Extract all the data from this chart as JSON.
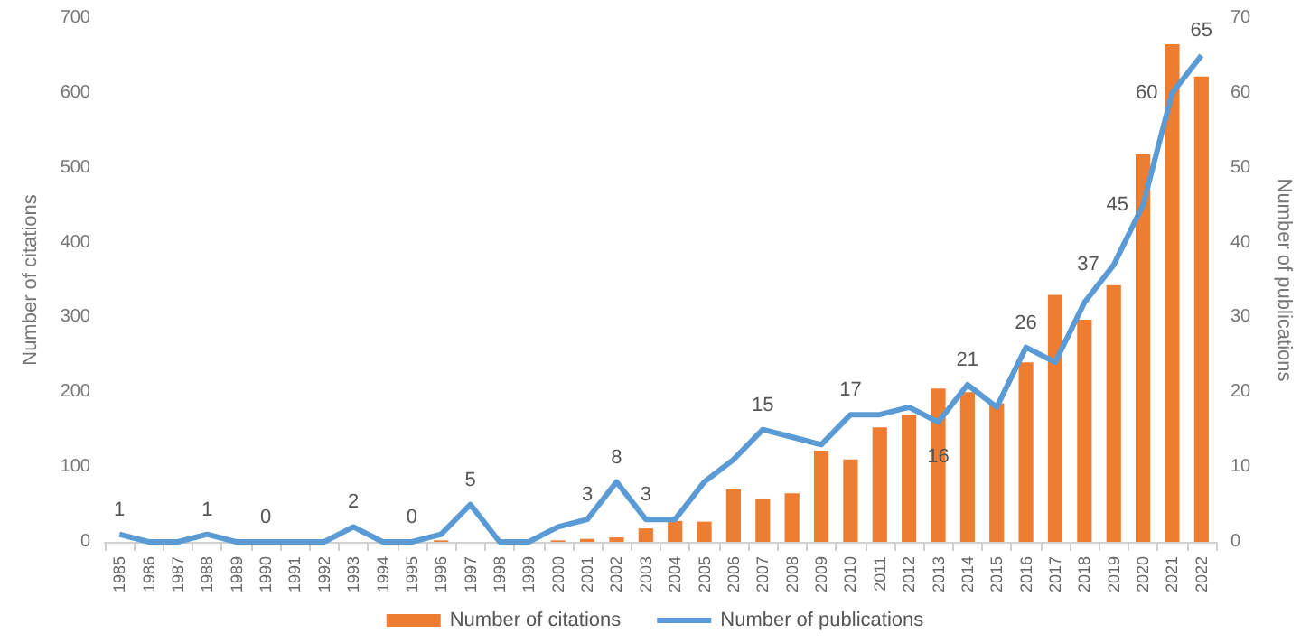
{
  "chart_data": {
    "type": "bar",
    "xlabel": null,
    "ylabel": "Number of citations",
    "y2label": "Number of publications",
    "categories": [
      "1985",
      "1986",
      "1987",
      "1988",
      "1989",
      "1990",
      "1991",
      "1992",
      "1993",
      "1994",
      "1995",
      "1996",
      "1997",
      "1998",
      "1999",
      "2000",
      "2001",
      "2002",
      "2003",
      "2004",
      "2005",
      "2006",
      "2007",
      "2008",
      "2009",
      "2010",
      "2011",
      "2012",
      "2013",
      "2014",
      "2015",
      "2016",
      "2017",
      "2018",
      "2019",
      "2020",
      "2021",
      "2022"
    ],
    "series": [
      {
        "name": "Number of citations",
        "color": "#ed7d31",
        "values": [
          0,
          0,
          0,
          0,
          0,
          0,
          0,
          0,
          0,
          0,
          0,
          2,
          0,
          0,
          0,
          2,
          4,
          6,
          18,
          28,
          27,
          70,
          58,
          65,
          122,
          110,
          153,
          170,
          205,
          200,
          185,
          240,
          330,
          297,
          343,
          518,
          665,
          622
        ]
      },
      {
        "name": "Number of publications",
        "type": "line",
        "axis": "y2",
        "color": "#5b9bd5",
        "values": [
          1,
          0,
          0,
          1,
          0,
          0,
          0,
          0,
          2,
          0,
          0,
          1,
          5,
          0,
          0,
          2,
          3,
          8,
          3,
          3,
          8,
          11,
          15,
          14,
          13,
          17,
          17,
          18,
          16,
          21,
          18,
          26,
          24,
          32,
          37,
          45,
          60,
          65
        ],
        "value_labels": [
          "1",
          null,
          null,
          "1",
          null,
          "0",
          null,
          null,
          "2",
          null,
          "0",
          null,
          "5",
          null,
          null,
          null,
          "3",
          "8",
          "3",
          null,
          null,
          null,
          "15",
          null,
          null,
          "17",
          null,
          null,
          "16",
          "21",
          null,
          "26",
          null,
          null,
          "37",
          "45",
          "60",
          "65"
        ]
      }
    ],
    "ylim": [
      0,
      700
    ],
    "yticks": [
      0,
      100,
      200,
      300,
      400,
      500,
      600,
      700
    ],
    "y2lim": [
      0,
      70
    ],
    "y2ticks": [
      0,
      10,
      20,
      30,
      40,
      50,
      60,
      70
    ],
    "grid": false,
    "legend": "bottom",
    "marker": "none",
    "line_style": "solid"
  }
}
